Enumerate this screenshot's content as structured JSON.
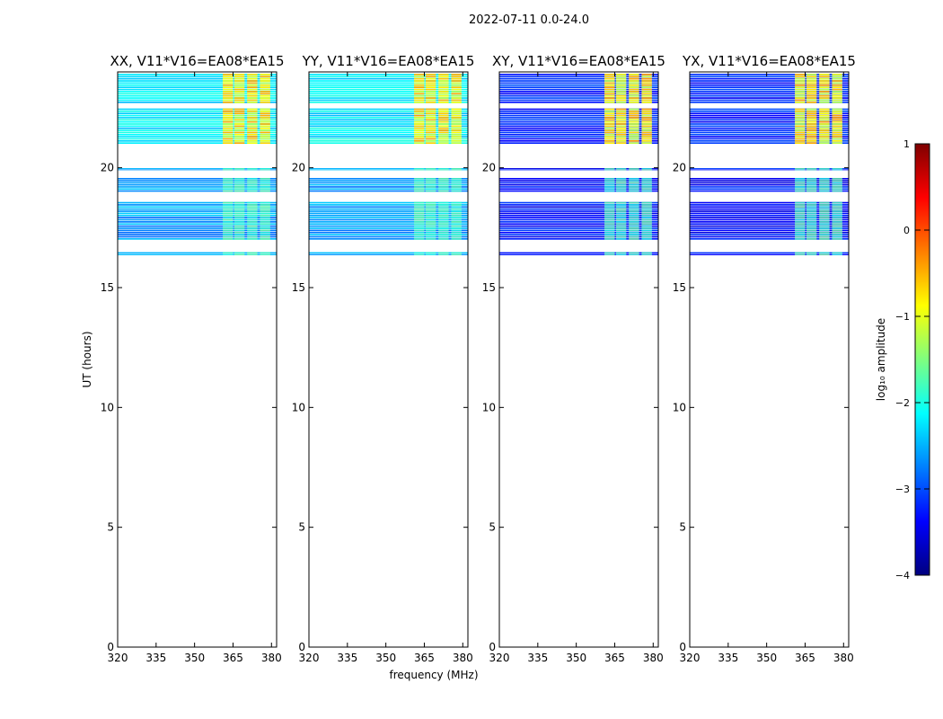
{
  "figure_title": "2022-07-11 0.0-24.0",
  "chart_data": {
    "type": "heatmap",
    "title": "2022-07-11 0.0-24.0",
    "xlabel": "frequency (MHz)",
    "ylabel": "UT (hours)",
    "xlim": [
      320,
      382
    ],
    "ylim": [
      0,
      24
    ],
    "xticks": [
      "320",
      "335",
      "350",
      "365",
      "380"
    ],
    "yticks": [
      "0",
      "5",
      "10",
      "15",
      "20"
    ],
    "panels": [
      {
        "title": "XX, V11*V16=EA08*EA15",
        "pol": "XX",
        "base_level": -2.2,
        "lower_level": -2.6
      },
      {
        "title": "YY, V11*V16=EA08*EA15",
        "pol": "YY",
        "base_level": -2.2,
        "lower_level": -2.6
      },
      {
        "title": "XY, V11*V16=EA08*EA15",
        "pol": "XY",
        "base_level": -3.2,
        "lower_level": -3.3
      },
      {
        "title": "YX, V11*V16=EA08*EA15",
        "pol": "YX",
        "base_level": -3.2,
        "lower_level": -3.3
      }
    ],
    "data_rows_ut": [
      [
        22.7,
        23.95
      ],
      [
        21.0,
        22.5
      ],
      [
        19.9,
        20.0
      ],
      [
        19.0,
        19.6
      ],
      [
        17.0,
        18.6
      ],
      [
        16.35,
        16.5
      ]
    ],
    "rfi_channels_mhz": [
      [
        361,
        365
      ],
      [
        365.5,
        369.5
      ],
      [
        370.5,
        374.5
      ],
      [
        375.5,
        379.5
      ]
    ],
    "rfi_level": -1.0,
    "colorbar": {
      "label": "log₁₀ amplitude",
      "range": [
        -4,
        1
      ],
      "ticks": [
        "1",
        "0",
        "−1",
        "−2",
        "−3",
        "−4"
      ],
      "colors": [
        "#00007f",
        "#0000ff",
        "#007fff",
        "#00ffff",
        "#7fff7f",
        "#ffff00",
        "#ff7f00",
        "#ff0000",
        "#7f0000"
      ]
    }
  }
}
